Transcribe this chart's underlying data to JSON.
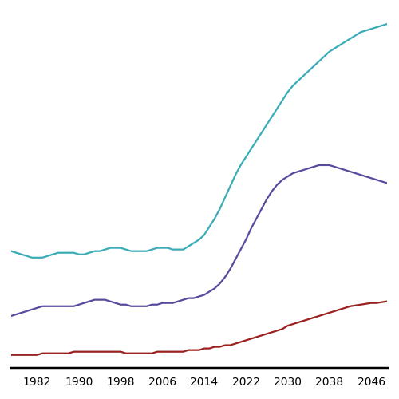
{
  "x_start": 1977,
  "x_end": 2049,
  "x_ticks": [
    1982,
    1990,
    1998,
    2006,
    2014,
    2022,
    2030,
    2038,
    2046
  ],
  "background_color": "#ffffff",
  "line_color_teal": "#3aacb8",
  "line_color_purple": "#5a4a9e",
  "line_color_red": "#9b2020",
  "linewidth": 1.6,
  "teal_data": {
    "years": [
      1977,
      1978,
      1979,
      1980,
      1981,
      1982,
      1983,
      1984,
      1985,
      1986,
      1987,
      1988,
      1989,
      1990,
      1991,
      1992,
      1993,
      1994,
      1995,
      1996,
      1997,
      1998,
      1999,
      2000,
      2001,
      2002,
      2003,
      2004,
      2005,
      2006,
      2007,
      2008,
      2009,
      2010,
      2011,
      2012,
      2013,
      2014,
      2015,
      2016,
      2017,
      2018,
      2019,
      2020,
      2021,
      2022,
      2023,
      2024,
      2025,
      2026,
      2027,
      2028,
      2029,
      2030,
      2031,
      2032,
      2033,
      2034,
      2035,
      2036,
      2037,
      2038,
      2039,
      2040,
      2041,
      2042,
      2043,
      2044,
      2045,
      2046,
      2047,
      2048,
      2049
    ],
    "values": [
      7.2,
      7.1,
      7.0,
      6.9,
      6.8,
      6.8,
      6.8,
      6.9,
      7.0,
      7.1,
      7.1,
      7.1,
      7.1,
      7.0,
      7.0,
      7.1,
      7.2,
      7.2,
      7.3,
      7.4,
      7.4,
      7.4,
      7.3,
      7.2,
      7.2,
      7.2,
      7.2,
      7.3,
      7.4,
      7.4,
      7.4,
      7.3,
      7.3,
      7.3,
      7.5,
      7.7,
      7.9,
      8.2,
      8.7,
      9.2,
      9.8,
      10.5,
      11.2,
      11.9,
      12.5,
      13.0,
      13.5,
      14.0,
      14.5,
      15.0,
      15.5,
      16.0,
      16.5,
      17.0,
      17.4,
      17.7,
      18.0,
      18.3,
      18.6,
      18.9,
      19.2,
      19.5,
      19.7,
      19.9,
      20.1,
      20.3,
      20.5,
      20.7,
      20.8,
      20.9,
      21.0,
      21.1,
      21.2
    ]
  },
  "purple_data": {
    "years": [
      1977,
      1978,
      1979,
      1980,
      1981,
      1982,
      1983,
      1984,
      1985,
      1986,
      1987,
      1988,
      1989,
      1990,
      1991,
      1992,
      1993,
      1994,
      1995,
      1996,
      1997,
      1998,
      1999,
      2000,
      2001,
      2002,
      2003,
      2004,
      2005,
      2006,
      2007,
      2008,
      2009,
      2010,
      2011,
      2012,
      2013,
      2014,
      2015,
      2016,
      2017,
      2018,
      2019,
      2020,
      2021,
      2022,
      2023,
      2024,
      2025,
      2026,
      2027,
      2028,
      2029,
      2030,
      2031,
      2032,
      2033,
      2034,
      2035,
      2036,
      2037,
      2038,
      2039,
      2040,
      2041,
      2042,
      2043,
      2044,
      2045,
      2046,
      2047,
      2048,
      2049
    ],
    "values": [
      3.2,
      3.3,
      3.4,
      3.5,
      3.6,
      3.7,
      3.8,
      3.8,
      3.8,
      3.8,
      3.8,
      3.8,
      3.8,
      3.9,
      4.0,
      4.1,
      4.2,
      4.2,
      4.2,
      4.1,
      4.0,
      3.9,
      3.9,
      3.8,
      3.8,
      3.8,
      3.8,
      3.9,
      3.9,
      4.0,
      4.0,
      4.0,
      4.1,
      4.2,
      4.3,
      4.3,
      4.4,
      4.5,
      4.7,
      4.9,
      5.2,
      5.6,
      6.1,
      6.7,
      7.3,
      7.9,
      8.6,
      9.2,
      9.8,
      10.4,
      10.9,
      11.3,
      11.6,
      11.8,
      12.0,
      12.1,
      12.2,
      12.3,
      12.4,
      12.5,
      12.5,
      12.5,
      12.4,
      12.3,
      12.2,
      12.1,
      12.0,
      11.9,
      11.8,
      11.7,
      11.6,
      11.5,
      11.4
    ]
  },
  "red_data": {
    "years": [
      1977,
      1978,
      1979,
      1980,
      1981,
      1982,
      1983,
      1984,
      1985,
      1986,
      1987,
      1988,
      1989,
      1990,
      1991,
      1992,
      1993,
      1994,
      1995,
      1996,
      1997,
      1998,
      1999,
      2000,
      2001,
      2002,
      2003,
      2004,
      2005,
      2006,
      2007,
      2008,
      2009,
      2010,
      2011,
      2012,
      2013,
      2014,
      2015,
      2016,
      2017,
      2018,
      2019,
      2020,
      2021,
      2022,
      2023,
      2024,
      2025,
      2026,
      2027,
      2028,
      2029,
      2030,
      2031,
      2032,
      2033,
      2034,
      2035,
      2036,
      2037,
      2038,
      2039,
      2040,
      2041,
      2042,
      2043,
      2044,
      2045,
      2046,
      2047,
      2048,
      2049
    ],
    "values": [
      0.8,
      0.8,
      0.8,
      0.8,
      0.8,
      0.8,
      0.9,
      0.9,
      0.9,
      0.9,
      0.9,
      0.9,
      1.0,
      1.0,
      1.0,
      1.0,
      1.0,
      1.0,
      1.0,
      1.0,
      1.0,
      1.0,
      0.9,
      0.9,
      0.9,
      0.9,
      0.9,
      0.9,
      1.0,
      1.0,
      1.0,
      1.0,
      1.0,
      1.0,
      1.1,
      1.1,
      1.1,
      1.2,
      1.2,
      1.3,
      1.3,
      1.4,
      1.4,
      1.5,
      1.6,
      1.7,
      1.8,
      1.9,
      2.0,
      2.1,
      2.2,
      2.3,
      2.4,
      2.6,
      2.7,
      2.8,
      2.9,
      3.0,
      3.1,
      3.2,
      3.3,
      3.4,
      3.5,
      3.6,
      3.7,
      3.8,
      3.85,
      3.9,
      3.95,
      4.0,
      4.0,
      4.05,
      4.1
    ]
  },
  "ylim": [
    0,
    22
  ],
  "xlim": [
    1977,
    2049
  ]
}
